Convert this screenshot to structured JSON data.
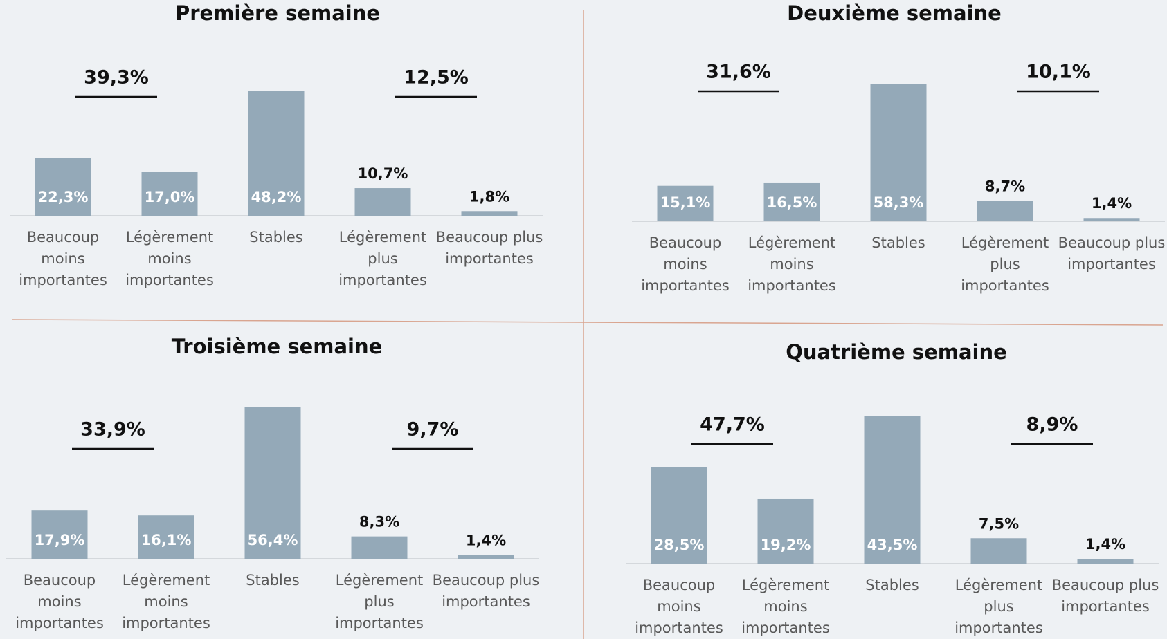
{
  "chart_data": [
    {
      "type": "bar",
      "title": "Première semaine",
      "categories": [
        "Beaucoup\nmoins\nimportantes",
        "Légèrement\nmoins\nimportantes",
        "Stables",
        "Légèrement\nplus\nimportantes",
        "Beaucoup plus\nimportantes"
      ],
      "values": [
        22.3,
        17.0,
        48.2,
        10.7,
        1.8
      ],
      "value_labels": [
        "22,3%",
        "17,0%",
        "48,2%",
        "10,7%",
        "1,8%"
      ],
      "annotations": [
        "39,3%",
        "12,5%"
      ],
      "color": "#94a9b8"
    },
    {
      "type": "bar",
      "title": "Deuxième semaine",
      "categories": [
        "Beaucoup\nmoins\nimportantes",
        "Légèrement\nmoins\nimportantes",
        "Stables",
        "Légèrement\nplus\nimportantes",
        "Beaucoup plus\nimportantes"
      ],
      "values": [
        15.1,
        16.5,
        58.3,
        8.7,
        1.4
      ],
      "value_labels": [
        "15,1%",
        "16,5%",
        "58,3%",
        "8,7%",
        "1,4%"
      ],
      "annotations": [
        "31,6%",
        "10,1%"
      ],
      "color": "#94a9b8"
    },
    {
      "type": "bar",
      "title": "Troisième semaine",
      "categories": [
        "Beaucoup\nmoins\nimportantes",
        "Légèrement\nmoins\nimportantes",
        "Stables",
        "Légèrement\nplus\nimportantes",
        "Beaucoup plus\nimportantes"
      ],
      "values": [
        17.9,
        16.1,
        56.4,
        8.3,
        1.4
      ],
      "value_labels": [
        "17,9%",
        "16,1%",
        "56,4%",
        "8,3%",
        "1,4%"
      ],
      "annotations": [
        "33,9%",
        "9,7%"
      ],
      "color": "#94a9b8"
    },
    {
      "type": "bar",
      "title": "Quatrième semaine",
      "categories": [
        "Beaucoup\nmoins\nimportantes",
        "Légèrement\nmoins\nimportantes",
        "Stables",
        "Légèrement\nplus\nimportantes",
        "Beaucoup plus\nimportantes"
      ],
      "values": [
        28.5,
        19.2,
        43.5,
        7.5,
        1.4
      ],
      "value_labels": [
        "28,5%",
        "19,2%",
        "43,5%",
        "7,5%",
        "1,4%"
      ],
      "annotations": [
        "47,7%",
        "8,9%"
      ],
      "color": "#94a9b8"
    }
  ]
}
